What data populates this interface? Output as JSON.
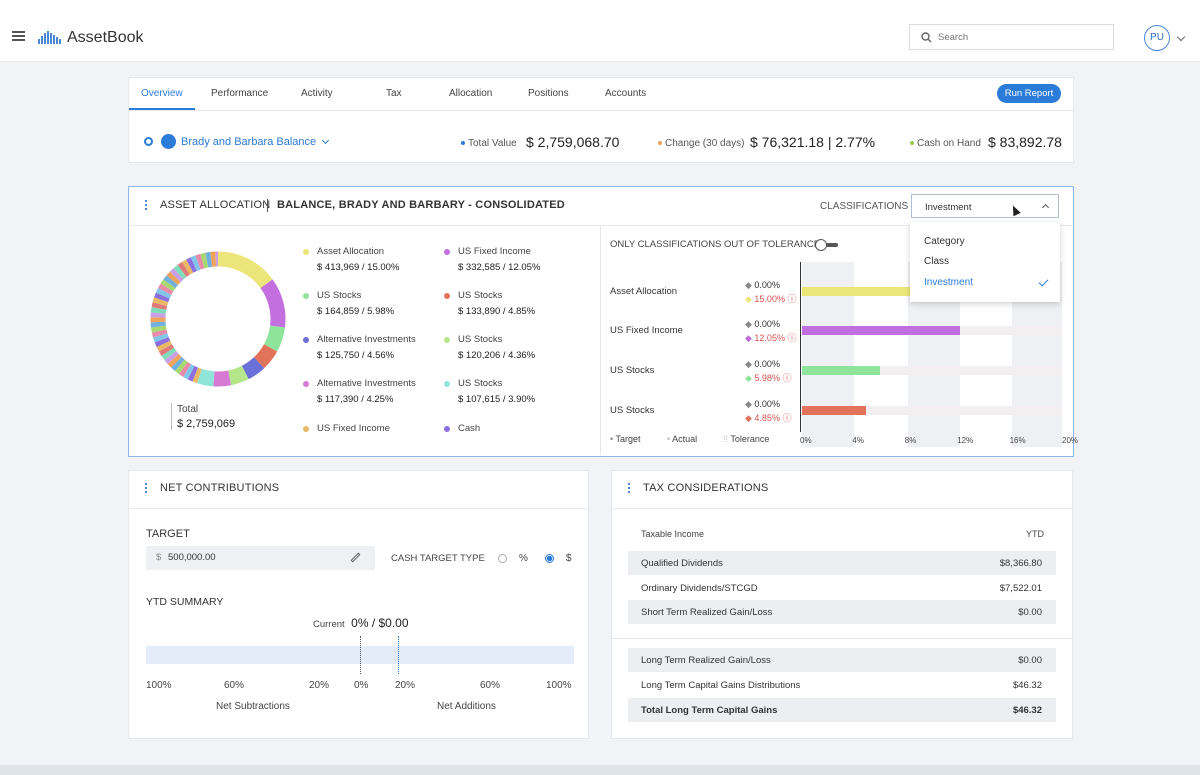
{
  "app": {
    "name": "AssetBook",
    "search_placeholder": "Search",
    "user_initials": "PU"
  },
  "tabs": [
    "Overview",
    "Performance",
    "Activity",
    "Tax",
    "Allocation",
    "Positions",
    "Accounts"
  ],
  "run_report": "Run Report",
  "household": {
    "name": "Brady and Barbara Balance",
    "total_value_label": "Total Value",
    "total_value": "$ 2,759,068.70",
    "change_label": "Change (30 days)",
    "change": "$ 76,321.18 | 2.77%",
    "cash_label": "Cash on Hand",
    "cash": "$ 83,892.78"
  },
  "allocation": {
    "title": "ASSET ALLOCATION",
    "subtitle": "BALANCE, BRADY AND BARBARY - CONSOLIDATED",
    "classifications_label": "CLASSIFICATIONS",
    "selected": "Investment",
    "dropdown_options": [
      "Category",
      "Class",
      "Investment"
    ],
    "donut_total_label": "Total",
    "donut_total": "$ 2,759,069",
    "legend": [
      {
        "name": "Asset Allocation",
        "value": "$ 413,969 / 15.00%",
        "color": "#ece67a"
      },
      {
        "name": "US Fixed Income",
        "value": "$ 332,585 / 12.05%",
        "color": "#c46fe0"
      },
      {
        "name": "US Stocks",
        "value": "$ 164,859 / 5.98%",
        "color": "#8ee49a"
      },
      {
        "name": "US Stocks",
        "value": "$ 133,890 / 4.85%",
        "color": "#e0735a"
      },
      {
        "name": "Alternative Investments",
        "value": "$ 125,750 / 4.56%",
        "color": "#6b6fd8"
      },
      {
        "name": "US Stocks",
        "value": "$ 120,206 / 4.36%",
        "color": "#b5e68a"
      },
      {
        "name": "Alternative Investments",
        "value": "$ 117,390 / 4.25%",
        "color": "#d77ad6"
      },
      {
        "name": "US Stocks",
        "value": "$ 107,615 / 3.90%",
        "color": "#8fe6d8"
      },
      {
        "name": "US Fixed Income",
        "value": "",
        "color": "#e9b865"
      },
      {
        "name": "Cash",
        "value": "",
        "color": "#8d6fe0"
      }
    ],
    "tolerance_toggle_label": "ONLY CLASSIFICATIONS OUT OF TOLERANCE",
    "bars": [
      {
        "name": "Asset Allocation",
        "target": "0.00%",
        "actual": "15.00%",
        "value": 15.0,
        "color": "#ece67a"
      },
      {
        "name": "US Fixed Income",
        "target": "0.00%",
        "actual": "12.05%",
        "value": 12.05,
        "color": "#c06ee0"
      },
      {
        "name": "US Stocks",
        "target": "0.00%",
        "actual": "5.98%",
        "value": 5.98,
        "color": "#8ee49a"
      },
      {
        "name": "US Stocks",
        "target": "0.00%",
        "actual": "4.85%",
        "value": 4.85,
        "color": "#e0735a"
      }
    ],
    "bar_axis": [
      "0%",
      "4%",
      "8%",
      "12%",
      "16%",
      "20%"
    ],
    "bar_legend": {
      "target": "Target",
      "actual": "Actual",
      "tolerance": "Tolerance"
    }
  },
  "net_contributions": {
    "title": "NET CONTRIBUTIONS",
    "target_label": "TARGET",
    "target_value": "500,000.00",
    "currency_symbol": "$",
    "cash_target_type_label": "CASH TARGET TYPE",
    "opt_percent": "%",
    "opt_dollar": "$",
    "ytd_label": "YTD SUMMARY",
    "current_label": "Current",
    "current_value": "0% / $0.00",
    "scale": [
      "100%",
      "60%",
      "20%",
      "0%",
      "20%",
      "60%",
      "100%"
    ],
    "net_subtractions": "Net Subtractions",
    "net_additions": "Net Additions"
  },
  "tax": {
    "title": "TAX CONSIDERATIONS",
    "col_label": "Taxable Income",
    "col_ytd": "YTD",
    "rows": [
      {
        "k": "Qualified Dividends",
        "v": "$8,366.80"
      },
      {
        "k": "Ordinary Dividends/STCGD",
        "v": "$7,522.01"
      },
      {
        "k": "Short Term Realized Gain/Loss",
        "v": "$0.00"
      },
      {
        "k": "Long Term Realized Gain/Loss",
        "v": "$0.00"
      },
      {
        "k": "Long Term Capital Gains Distributions",
        "v": "$46.32"
      },
      {
        "k": "Total Long Term Capital Gains",
        "v": "$46.32"
      }
    ]
  },
  "colors": {
    "accent": "#2b7bd8",
    "tolerance_red": "#d9534f"
  }
}
